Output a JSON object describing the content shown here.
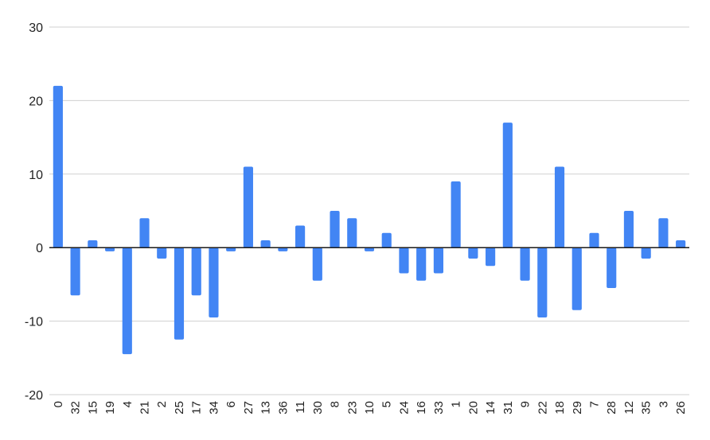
{
  "chart_data": {
    "type": "bar",
    "title": "",
    "xlabel": "",
    "ylabel": "",
    "ylim": [
      -20,
      30
    ],
    "yticks": [
      30,
      20,
      10,
      0,
      -10,
      -20
    ],
    "grid": true,
    "legend": "none",
    "bar_color": "#4285f4",
    "categories": [
      "0",
      "32",
      "15",
      "19",
      "4",
      "21",
      "2",
      "25",
      "17",
      "34",
      "6",
      "27",
      "13",
      "36",
      "11",
      "30",
      "8",
      "23",
      "10",
      "5",
      "24",
      "16",
      "33",
      "1",
      "20",
      "14",
      "31",
      "9",
      "22",
      "18",
      "29",
      "7",
      "28",
      "12",
      "35",
      "3",
      "26"
    ],
    "values": [
      22,
      -6.5,
      1,
      -0.5,
      -14.5,
      4,
      -1.5,
      -12.5,
      -6.5,
      -9.5,
      -0.5,
      11,
      1,
      -0.5,
      3,
      -4.5,
      5,
      4,
      -0.5,
      2,
      -3.5,
      -4.5,
      -3.5,
      9,
      -1.5,
      -2.5,
      17,
      -4.5,
      -9.5,
      11,
      -8.5,
      2,
      -5.5,
      5,
      -1.5,
      4,
      1
    ]
  }
}
